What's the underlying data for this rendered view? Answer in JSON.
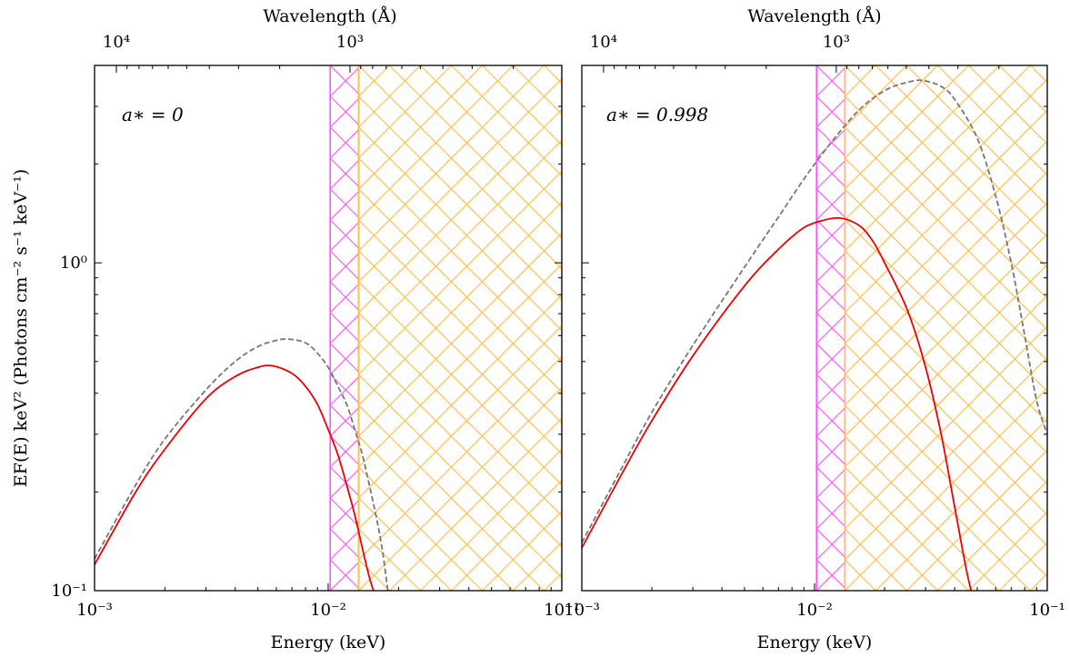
{
  "figure": {
    "ylabel": "EF(E)   keV² (Photons cm⁻² s⁻¹ keV⁻¹)"
  },
  "colors": {
    "model_line": "#ee0000",
    "dashed_line": "#777777",
    "magenta_band": "#ff55ff",
    "orange_band": "#ffc050",
    "axes": "#000000"
  },
  "chart_data": [
    {
      "type": "line",
      "panel": "left",
      "annotation": "a∗ = 0",
      "xlabel": "Energy   (keV)",
      "top_xlabel": "Wavelength   (Å)",
      "xscale": "log",
      "yscale": "log",
      "xlim": [
        0.001,
        0.1
      ],
      "ylim": [
        0.1,
        4.0
      ],
      "x_tick_labels": [
        "10⁻³",
        "10⁻²",
        "10⁻¹"
      ],
      "y_tick_labels": [
        "10⁻¹",
        "10⁰"
      ],
      "top_tick_labels": [
        "10⁴",
        "10³"
      ],
      "shaded_regions": [
        {
          "x": [
            0.0102,
            0.0135
          ],
          "color": "magenta",
          "hatch": "cross"
        },
        {
          "x": [
            0.0135,
            0.1
          ],
          "color": "orange",
          "hatch": "cross"
        }
      ],
      "series": [
        {
          "style": "solid",
          "color": "red",
          "x": [
            0.001,
            0.0015,
            0.002,
            0.003,
            0.004,
            0.005,
            0.0058,
            0.007,
            0.008,
            0.009,
            0.01,
            0.011,
            0.012,
            0.013,
            0.014,
            0.015,
            0.016
          ],
          "y": [
            0.12,
            0.2,
            0.27,
            0.385,
            0.45,
            0.48,
            0.485,
            0.46,
            0.42,
            0.37,
            0.31,
            0.26,
            0.21,
            0.17,
            0.135,
            0.11,
            0.095
          ]
        },
        {
          "style": "dashed",
          "color": "gray",
          "x": [
            0.001,
            0.0015,
            0.002,
            0.003,
            0.004,
            0.005,
            0.006,
            0.0068,
            0.008,
            0.009,
            0.01,
            0.011,
            0.012,
            0.013,
            0.014,
            0.015,
            0.016,
            0.017,
            0.018
          ],
          "y": [
            0.125,
            0.21,
            0.29,
            0.41,
            0.5,
            0.555,
            0.58,
            0.585,
            0.57,
            0.53,
            0.48,
            0.42,
            0.37,
            0.31,
            0.26,
            0.21,
            0.17,
            0.135,
            0.1
          ]
        }
      ]
    },
    {
      "type": "line",
      "panel": "right",
      "annotation": "a∗ = 0.998",
      "xlabel": "Energy   (keV)",
      "top_xlabel": "Wavelength   (Å)",
      "xscale": "log",
      "yscale": "log",
      "xlim": [
        0.001,
        0.1
      ],
      "ylim": [
        0.1,
        4.0
      ],
      "x_tick_labels": [
        "10⁻³",
        "10⁻²",
        "10⁻¹"
      ],
      "y_tick_labels": [
        "10⁻¹",
        "10⁰"
      ],
      "top_tick_labels": [
        "10⁴",
        "10³"
      ],
      "shaded_regions": [
        {
          "x": [
            0.0102,
            0.0135
          ],
          "color": "magenta",
          "hatch": "cross"
        },
        {
          "x": [
            0.0135,
            0.1
          ],
          "color": "orange",
          "hatch": "cross"
        }
      ],
      "series": [
        {
          "style": "solid",
          "color": "red",
          "x": [
            0.001,
            0.0015,
            0.002,
            0.003,
            0.005,
            0.007,
            0.009,
            0.011,
            0.0125,
            0.014,
            0.016,
            0.018,
            0.02,
            0.025,
            0.03,
            0.035,
            0.04,
            0.045,
            0.048
          ],
          "y": [
            0.135,
            0.23,
            0.33,
            0.52,
            0.85,
            1.1,
            1.28,
            1.35,
            1.37,
            1.35,
            1.28,
            1.15,
            1.0,
            0.72,
            0.48,
            0.3,
            0.18,
            0.115,
            0.095
          ]
        },
        {
          "style": "dashed",
          "color": "gray",
          "x": [
            0.001,
            0.0015,
            0.002,
            0.003,
            0.005,
            0.007,
            0.01,
            0.015,
            0.02,
            0.025,
            0.029,
            0.035,
            0.04,
            0.05,
            0.06,
            0.07,
            0.08,
            0.09,
            0.1
          ],
          "y": [
            0.14,
            0.24,
            0.35,
            0.56,
            0.97,
            1.38,
            2.0,
            2.85,
            3.35,
            3.55,
            3.6,
            3.45,
            3.15,
            2.4,
            1.6,
            1.0,
            0.6,
            0.38,
            0.3
          ]
        }
      ]
    }
  ]
}
